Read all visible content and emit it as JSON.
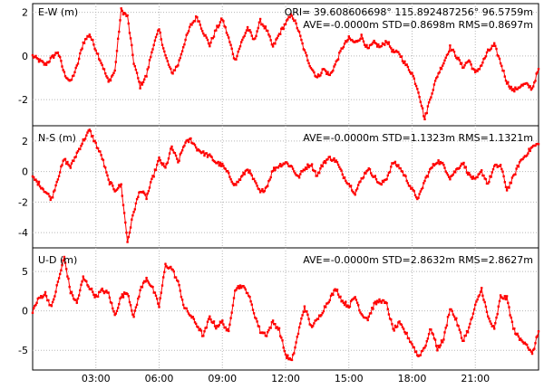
{
  "chart_data": {
    "type": "scatter",
    "grid": true,
    "x_ticks": [
      "03:00",
      "06:00",
      "09:00",
      "12:00",
      "15:00",
      "18:00",
      "21:00"
    ],
    "x_range_hours": [
      0,
      24
    ],
    "colors": {
      "series": "#ff0000",
      "frame": "#000000",
      "grid": "#b8b8b8"
    },
    "panels": [
      {
        "title": "E-W (m)",
        "info_line1": "ORI= 39.608606698°  115.892487256° 96.5759m",
        "info_line2": "AVE=-0.0000m STD=0.8698m RMS=0.8697m",
        "ylim": [
          -3.2,
          2.4
        ],
        "y_ticks": [
          2,
          0,
          -2
        ],
        "x": [
          0,
          0.3,
          0.6,
          0.9,
          1.2,
          1.5,
          1.8,
          2.1,
          2.4,
          2.7,
          3.0,
          3.3,
          3.6,
          3.9,
          4.2,
          4.5,
          4.8,
          5.1,
          5.4,
          5.7,
          6.0,
          6.3,
          6.6,
          6.9,
          7.2,
          7.5,
          7.8,
          8.1,
          8.4,
          8.7,
          9.0,
          9.3,
          9.6,
          9.9,
          10.2,
          10.5,
          10.8,
          11.1,
          11.4,
          11.7,
          12.0,
          12.3,
          12.6,
          12.9,
          13.2,
          13.5,
          13.8,
          14.1,
          14.4,
          14.7,
          15.0,
          15.3,
          15.6,
          15.9,
          16.2,
          16.5,
          16.8,
          17.1,
          17.4,
          17.7,
          18.0,
          18.3,
          18.6,
          18.9,
          19.2,
          19.5,
          19.8,
          20.1,
          20.4,
          20.7,
          21.0,
          21.3,
          21.6,
          21.9,
          22.2,
          22.5,
          22.8,
          23.1,
          23.4,
          23.7,
          24.0
        ],
        "values": [
          0.0,
          -0.2,
          -0.4,
          -0.1,
          0.2,
          -0.8,
          -1.2,
          -0.5,
          0.6,
          1.0,
          0.3,
          -0.4,
          -1.2,
          -0.7,
          2.1,
          1.8,
          -0.3,
          -1.4,
          -0.9,
          0.4,
          1.2,
          0.0,
          -0.8,
          -0.4,
          0.6,
          1.4,
          1.8,
          1.1,
          0.5,
          1.2,
          1.7,
          0.8,
          -0.2,
          0.6,
          1.3,
          0.7,
          1.6,
          1.2,
          0.4,
          1.0,
          1.5,
          1.9,
          1.2,
          0.2,
          -0.5,
          -1.0,
          -0.6,
          -0.9,
          -0.3,
          0.4,
          0.8,
          0.6,
          0.9,
          0.3,
          0.6,
          0.4,
          0.7,
          0.2,
          0.1,
          -0.4,
          -0.8,
          -1.6,
          -2.9,
          -1.8,
          -0.9,
          -0.3,
          0.4,
          0.0,
          -0.5,
          -0.2,
          -0.8,
          -0.4,
          0.2,
          0.5,
          -0.3,
          -1.2,
          -1.6,
          -1.4,
          -1.3,
          -1.5,
          -0.6
        ]
      },
      {
        "title": "N-S (m)",
        "info_line1": "",
        "info_line2": "AVE=-0.0000m STD=1.1323m RMS=1.1321m",
        "ylim": [
          -5.0,
          3.0
        ],
        "y_ticks": [
          2,
          0,
          -2,
          -4
        ],
        "x": [
          0,
          0.3,
          0.6,
          0.9,
          1.2,
          1.5,
          1.8,
          2.1,
          2.4,
          2.7,
          3.0,
          3.3,
          3.6,
          3.9,
          4.2,
          4.5,
          4.8,
          5.1,
          5.4,
          5.7,
          6.0,
          6.3,
          6.6,
          6.9,
          7.2,
          7.5,
          7.8,
          8.1,
          8.4,
          8.7,
          9.0,
          9.3,
          9.6,
          9.9,
          10.2,
          10.5,
          10.8,
          11.1,
          11.4,
          11.7,
          12.0,
          12.3,
          12.6,
          12.9,
          13.2,
          13.5,
          13.8,
          14.1,
          14.4,
          14.7,
          15.0,
          15.3,
          15.6,
          15.9,
          16.2,
          16.5,
          16.8,
          17.1,
          17.4,
          17.7,
          18.0,
          18.3,
          18.6,
          18.9,
          19.2,
          19.5,
          19.8,
          20.1,
          20.4,
          20.7,
          21.0,
          21.3,
          21.6,
          21.9,
          22.2,
          22.5,
          22.8,
          23.1,
          23.4,
          23.7,
          24.0
        ],
        "values": [
          -0.4,
          -0.8,
          -1.3,
          -1.8,
          -0.4,
          0.8,
          0.3,
          1.2,
          2.0,
          2.7,
          1.8,
          0.9,
          -0.6,
          -1.2,
          -0.9,
          -4.6,
          -2.6,
          -1.2,
          -1.7,
          -0.4,
          0.8,
          0.2,
          1.6,
          0.6,
          1.8,
          2.1,
          1.5,
          1.2,
          1.0,
          0.6,
          0.4,
          -0.2,
          -0.9,
          -0.4,
          0.2,
          -0.6,
          -1.4,
          -1.0,
          0.1,
          0.4,
          0.6,
          0.3,
          -0.4,
          0.2,
          0.5,
          -0.3,
          0.6,
          0.9,
          0.7,
          -0.2,
          -0.8,
          -1.4,
          -0.5,
          0.2,
          -0.3,
          -0.9,
          -0.4,
          0.6,
          0.3,
          -0.4,
          -1.2,
          -1.8,
          -0.6,
          0.2,
          0.7,
          0.4,
          -0.4,
          0.1,
          0.6,
          -0.2,
          -0.6,
          0.0,
          -0.8,
          0.3,
          0.4,
          -1.2,
          -0.4,
          0.6,
          1.1,
          1.6,
          1.8
        ]
      },
      {
        "title": "U-D (m)",
        "info_line1": "",
        "info_line2": "AVE=-0.0000m STD=2.8632m RMS=2.8627m",
        "ylim": [
          -7.5,
          8.0
        ],
        "y_ticks": [
          5,
          0,
          -5
        ],
        "x": [
          0,
          0.3,
          0.6,
          0.9,
          1.2,
          1.5,
          1.8,
          2.1,
          2.4,
          2.7,
          3.0,
          3.3,
          3.6,
          3.9,
          4.2,
          4.5,
          4.8,
          5.1,
          5.4,
          5.7,
          6.0,
          6.3,
          6.6,
          6.9,
          7.2,
          7.5,
          7.8,
          8.1,
          8.4,
          8.7,
          9.0,
          9.3,
          9.6,
          9.9,
          10.2,
          10.5,
          10.8,
          11.1,
          11.4,
          11.7,
          12.0,
          12.3,
          12.6,
          12.9,
          13.2,
          13.5,
          13.8,
          14.1,
          14.4,
          14.7,
          15.0,
          15.3,
          15.6,
          15.9,
          16.2,
          16.5,
          16.8,
          17.1,
          17.4,
          17.7,
          18.0,
          18.3,
          18.6,
          18.9,
          19.2,
          19.5,
          19.8,
          20.1,
          20.4,
          20.7,
          21.0,
          21.3,
          21.6,
          21.9,
          22.2,
          22.5,
          22.8,
          23.1,
          23.4,
          23.7,
          24.0
        ],
        "values": [
          0.0,
          1.6,
          2.2,
          0.4,
          3.6,
          6.8,
          2.4,
          1.0,
          4.2,
          3.0,
          1.8,
          2.6,
          2.2,
          -0.6,
          1.8,
          2.4,
          -0.8,
          2.6,
          4.2,
          2.8,
          0.6,
          5.8,
          5.4,
          3.6,
          0.4,
          -0.6,
          -1.8,
          -3.2,
          -0.8,
          -2.0,
          -1.4,
          -2.8,
          2.8,
          3.2,
          2.4,
          -0.2,
          -2.6,
          -3.0,
          -1.4,
          -2.4,
          -5.6,
          -6.4,
          -2.8,
          0.6,
          -2.0,
          -1.2,
          0.2,
          1.6,
          2.8,
          1.2,
          0.6,
          1.8,
          -0.4,
          -1.0,
          0.8,
          1.4,
          0.8,
          -2.4,
          -1.6,
          -2.8,
          -4.2,
          -5.8,
          -4.6,
          -2.2,
          -4.8,
          -3.6,
          0.4,
          -1.2,
          -3.8,
          -2.2,
          0.6,
          2.8,
          -0.8,
          -2.4,
          1.8,
          1.6,
          -2.2,
          -3.6,
          -4.0,
          -5.6,
          -2.6
        ]
      }
    ]
  }
}
